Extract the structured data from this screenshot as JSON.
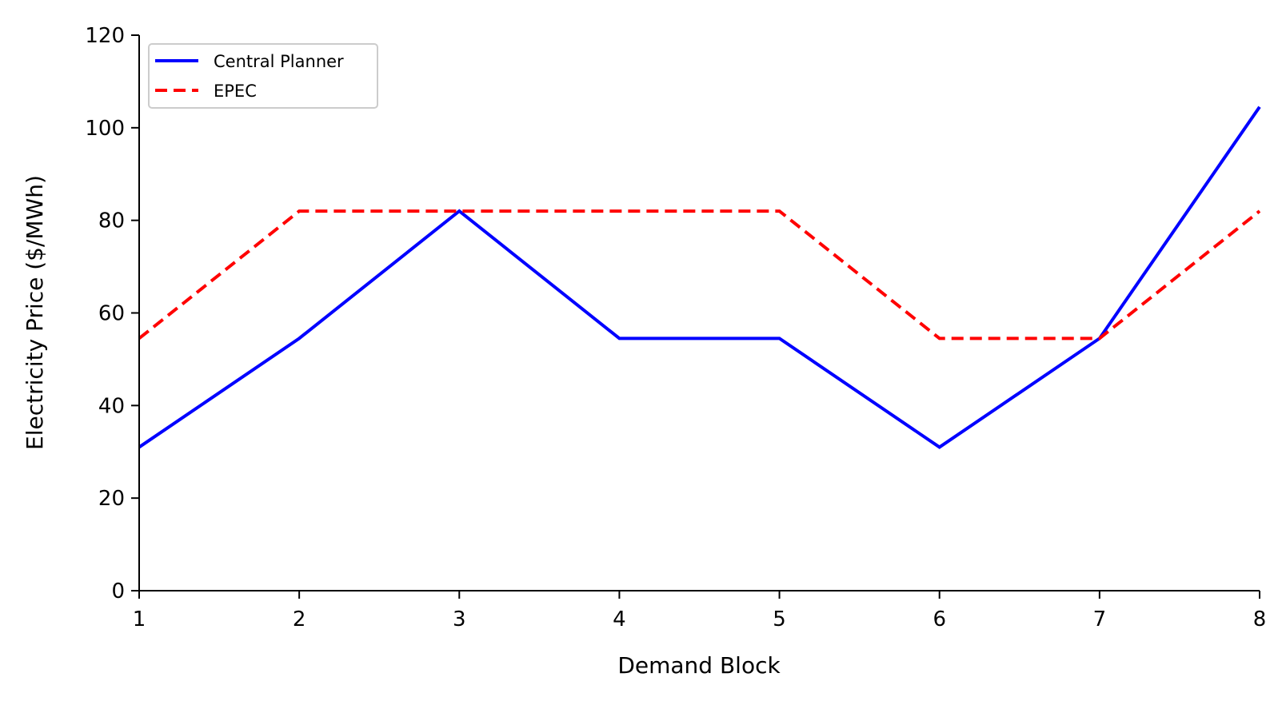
{
  "chart_data": {
    "type": "line",
    "title": "",
    "xlabel": "Demand Block",
    "ylabel": "Electricity Price ($/MWh)",
    "x": [
      1,
      2,
      3,
      4,
      5,
      6,
      7,
      8
    ],
    "xlim": [
      1,
      8
    ],
    "ylim": [
      0,
      120
    ],
    "xticks": [
      1,
      2,
      3,
      4,
      5,
      6,
      7,
      8
    ],
    "yticks": [
      0,
      20,
      40,
      60,
      80,
      100,
      120
    ],
    "grid": false,
    "legend_position": "top-left",
    "series": [
      {
        "name": "Central Planner",
        "color": "#0000ff",
        "style": "solid",
        "values": [
          31,
          54.5,
          82,
          54.5,
          54.5,
          31,
          54.5,
          104.5
        ]
      },
      {
        "name": "EPEC",
        "color": "#ff0000",
        "style": "dashed",
        "values": [
          54.5,
          82,
          82,
          82,
          82,
          54.5,
          54.5,
          82
        ]
      }
    ]
  }
}
